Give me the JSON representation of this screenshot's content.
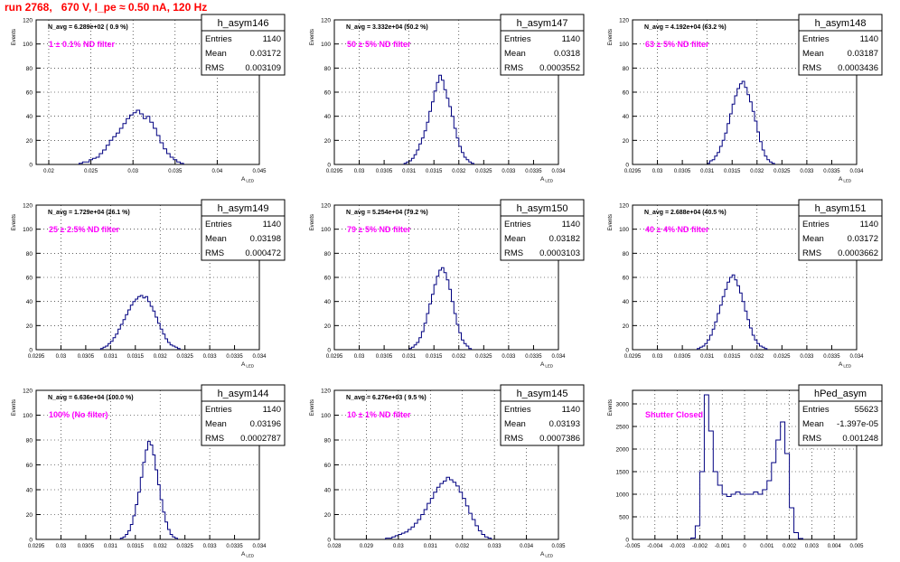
{
  "header": {
    "run_title": "run 2768,   670 V, I_pe ≈ 0.50 nA, 120 Hz"
  },
  "colors": {
    "histogram_line": "#000080",
    "title_text": "#ff0000",
    "filter_text": "#ff00ff",
    "grid": "#000000"
  },
  "chart_data": [
    {
      "type": "histogram",
      "title": "h_asym146",
      "navg": "N_avg = 6.289e+02 ( 0.9 %)",
      "filter": "1 ±  0.1% ND filter",
      "stats": {
        "Entries": "1140",
        "Mean": "0.03172",
        "RMS": "0.003109"
      },
      "xlabel": "A_LED",
      "ylabel": "Events",
      "xlim": [
        0.0185,
        0.045
      ],
      "ylim": [
        0,
        120
      ],
      "xticks": [
        "0.02",
        "0.025",
        "0.03",
        "0.035",
        "0.04",
        "0.045"
      ],
      "xtick_values": [
        0.02,
        0.025,
        0.03,
        0.035,
        0.04,
        0.045
      ],
      "yticks": [
        0,
        20,
        40,
        60,
        80,
        100,
        120
      ],
      "xgrid": [
        0.02,
        0.025,
        0.03,
        0.035,
        0.04
      ],
      "bins_start": 0.0236,
      "bin_width": 0.0004,
      "counts": [
        1,
        2,
        2,
        4,
        5,
        6,
        9,
        12,
        16,
        20,
        23,
        26,
        30,
        34,
        38,
        41,
        43,
        45,
        42,
        38,
        40,
        35,
        30,
        24,
        18,
        13,
        9,
        6,
        4,
        2,
        1
      ]
    },
    {
      "type": "histogram",
      "title": "h_asym147",
      "navg": "N_avg = 3.332e+04 (50.2 %)",
      "filter": "50 ±  5% ND filter",
      "stats": {
        "Entries": "1140",
        "Mean": "0.0318",
        "RMS": "0.0003552"
      },
      "xlabel": "A_LED",
      "ylabel": "Events",
      "xlim": [
        0.0295,
        0.034
      ],
      "ylim": [
        0,
        120
      ],
      "xticks": [
        "0.0295",
        "0.03",
        "0.0305",
        "0.031",
        "0.0315",
        "0.032",
        "0.0325",
        "0.033",
        "0.0335",
        "0.034"
      ],
      "xtick_values": [
        0.0295,
        0.03,
        0.0305,
        0.031,
        0.0315,
        0.032,
        0.0325,
        0.033,
        0.0335,
        0.034
      ],
      "yticks": [
        0,
        20,
        40,
        60,
        80,
        100,
        120
      ],
      "xgrid": [
        0.03,
        0.031,
        0.032,
        0.033
      ],
      "bins_start": 0.0309,
      "bin_width": 5e-05,
      "counts": [
        1,
        2,
        3,
        5,
        8,
        12,
        17,
        22,
        28,
        35,
        44,
        52,
        61,
        68,
        74,
        70,
        62,
        55,
        48,
        40,
        30,
        22,
        15,
        10,
        6,
        4,
        2,
        1
      ]
    },
    {
      "type": "histogram",
      "title": "h_asym148",
      "navg": "N_avg = 4.192e+04 (63.2 %)",
      "filter": "63 ±  5% ND filter",
      "stats": {
        "Entries": "1140",
        "Mean": "0.03187",
        "RMS": "0.0003436"
      },
      "xlabel": "A_LED",
      "ylabel": "Events",
      "xlim": [
        0.0295,
        0.034
      ],
      "ylim": [
        0,
        120
      ],
      "xticks": [
        "0.0295",
        "0.03",
        "0.0305",
        "0.031",
        "0.0315",
        "0.032",
        "0.0325",
        "0.033",
        "0.0335",
        "0.034"
      ],
      "xtick_values": [
        0.0295,
        0.03,
        0.0305,
        0.031,
        0.0315,
        0.032,
        0.0325,
        0.033,
        0.0335,
        0.034
      ],
      "yticks": [
        0,
        20,
        40,
        60,
        80,
        100,
        120
      ],
      "xgrid": [
        0.03,
        0.031,
        0.032,
        0.033
      ],
      "bins_start": 0.031,
      "bin_width": 5e-05,
      "counts": [
        1,
        3,
        4,
        7,
        10,
        15,
        20,
        26,
        34,
        42,
        50,
        57,
        63,
        67,
        69,
        64,
        58,
        52,
        44,
        36,
        27,
        19,
        12,
        7,
        4,
        2,
        1
      ]
    },
    {
      "type": "histogram",
      "title": "h_asym149",
      "navg": "N_avg = 1.729e+04 (26.1 %)",
      "filter": "25 ±  2.5% ND filter",
      "stats": {
        "Entries": "1140",
        "Mean": "0.03198",
        "RMS": "0.000472"
      },
      "xlabel": "A_LED",
      "ylabel": "Events",
      "xlim": [
        0.0295,
        0.034
      ],
      "ylim": [
        0,
        120
      ],
      "xticks": [
        "0.0295",
        "0.03",
        "0.0305",
        "0.031",
        "0.0315",
        "0.032",
        "0.0325",
        "0.033",
        "0.0335",
        "0.034"
      ],
      "xtick_values": [
        0.0295,
        0.03,
        0.0305,
        0.031,
        0.0315,
        0.032,
        0.0325,
        0.033,
        0.0335,
        0.034
      ],
      "yticks": [
        0,
        20,
        40,
        60,
        80,
        100,
        120
      ],
      "xgrid": [
        0.03,
        0.031,
        0.032,
        0.033
      ],
      "bins_start": 0.0308,
      "bin_width": 5e-05,
      "counts": [
        1,
        2,
        3,
        5,
        7,
        10,
        13,
        17,
        21,
        25,
        29,
        33,
        37,
        40,
        42,
        44,
        45,
        43,
        44,
        40,
        36,
        32,
        27,
        22,
        17,
        13,
        9,
        6,
        4,
        3,
        2,
        1
      ]
    },
    {
      "type": "histogram",
      "title": "h_asym150",
      "navg": "N_avg = 5.254e+04 (79.2 %)",
      "filter": "79 ±  5% ND filter",
      "stats": {
        "Entries": "1140",
        "Mean": "0.03182",
        "RMS": "0.0003103"
      },
      "xlabel": "A_LED",
      "ylabel": "Events",
      "xlim": [
        0.0295,
        0.034
      ],
      "ylim": [
        0,
        120
      ],
      "xticks": [
        "0.0295",
        "0.03",
        "0.0305",
        "0.031",
        "0.0315",
        "0.032",
        "0.0325",
        "0.033",
        "0.0335",
        "0.034"
      ],
      "xtick_values": [
        0.0295,
        0.03,
        0.0305,
        0.031,
        0.0315,
        0.032,
        0.0325,
        0.033,
        0.0335,
        0.034
      ],
      "yticks": [
        0,
        20,
        40,
        60,
        80,
        100,
        120
      ],
      "xgrid": [
        0.03,
        0.031,
        0.032,
        0.033
      ],
      "bins_start": 0.031,
      "bin_width": 5e-05,
      "counts": [
        1,
        2,
        4,
        6,
        10,
        15,
        22,
        30,
        38,
        46,
        54,
        61,
        66,
        68,
        64,
        58,
        50,
        40,
        30,
        21,
        14,
        8,
        5,
        3,
        1
      ]
    },
    {
      "type": "histogram",
      "title": "h_asym151",
      "navg": "N_avg = 2.688e+04 (40.5 %)",
      "filter": "40 ±  4% ND filter",
      "stats": {
        "Entries": "1140",
        "Mean": "0.03172",
        "RMS": "0.0003662"
      },
      "xlabel": "A_LED",
      "ylabel": "Events",
      "xlim": [
        0.0295,
        0.034
      ],
      "ylim": [
        0,
        120
      ],
      "xticks": [
        "0.0295",
        "0.03",
        "0.0305",
        "0.031",
        "0.0315",
        "0.032",
        "0.0325",
        "0.033",
        "0.0335",
        "0.034"
      ],
      "xtick_values": [
        0.0295,
        0.03,
        0.0305,
        0.031,
        0.0315,
        0.032,
        0.0325,
        0.033,
        0.0335,
        0.034
      ],
      "yticks": [
        0,
        20,
        40,
        60,
        80,
        100,
        120
      ],
      "xgrid": [
        0.03,
        0.031,
        0.032,
        0.033
      ],
      "bins_start": 0.0308,
      "bin_width": 5e-05,
      "counts": [
        1,
        2,
        3,
        5,
        8,
        12,
        17,
        23,
        30,
        37,
        44,
        50,
        56,
        60,
        62,
        58,
        53,
        47,
        40,
        32,
        25,
        18,
        12,
        8,
        5,
        3,
        2,
        1
      ]
    },
    {
      "type": "histogram",
      "title": "h_asym144",
      "navg": "N_avg = 6.636e+04 (100.0 %)",
      "filter": "100% (No filter)",
      "stats": {
        "Entries": "1140",
        "Mean": "0.03196",
        "RMS": "0.0002787"
      },
      "xlabel": "A_LED",
      "ylabel": "Events",
      "xlim": [
        0.0295,
        0.034
      ],
      "ylim": [
        0,
        120
      ],
      "xticks": [
        "0.0295",
        "0.03",
        "0.0305",
        "0.031",
        "0.0315",
        "0.032",
        "0.0325",
        "0.033",
        "0.0335",
        "0.034"
      ],
      "xtick_values": [
        0.0295,
        0.03,
        0.0305,
        0.031,
        0.0315,
        0.032,
        0.0325,
        0.033,
        0.0335,
        0.034
      ],
      "yticks": [
        0,
        20,
        40,
        60,
        80,
        100,
        120
      ],
      "xgrid": [
        0.03,
        0.031,
        0.032,
        0.033
      ],
      "bins_start": 0.0312,
      "bin_width": 5e-05,
      "counts": [
        1,
        2,
        4,
        7,
        12,
        19,
        28,
        38,
        50,
        62,
        72,
        79,
        76,
        68,
        56,
        44,
        32,
        22,
        14,
        8,
        4,
        2,
        1
      ]
    },
    {
      "type": "histogram",
      "title": "h_asym145",
      "navg": "N_avg = 6.276e+03 ( 9.5 %)",
      "filter": "10 ±  1% ND filter",
      "stats": {
        "Entries": "1140",
        "Mean": "0.03193",
        "RMS": "0.0007386"
      },
      "xlabel": "A_LED",
      "ylabel": "Events",
      "xlim": [
        0.028,
        0.035
      ],
      "ylim": [
        0,
        120
      ],
      "xticks": [
        "0.028",
        "0.029",
        "0.03",
        "0.031",
        "0.032",
        "0.033",
        "0.034",
        "0.035"
      ],
      "xtick_values": [
        0.028,
        0.029,
        0.03,
        0.031,
        0.032,
        0.033,
        0.034,
        0.035
      ],
      "yticks": [
        0,
        20,
        40,
        60,
        80,
        100,
        120
      ],
      "xgrid": [
        0.029,
        0.03,
        0.031,
        0.032,
        0.033,
        0.034
      ],
      "bins_start": 0.0296,
      "bin_width": 0.0001,
      "counts": [
        1,
        1,
        2,
        3,
        4,
        5,
        6,
        8,
        10,
        13,
        16,
        20,
        24,
        29,
        33,
        38,
        42,
        45,
        47,
        50,
        48,
        46,
        43,
        38,
        33,
        27,
        21,
        16,
        11,
        7,
        4,
        2,
        1
      ]
    },
    {
      "type": "histogram",
      "title": "hPed_asym",
      "navg": "",
      "filter": "Shutter Closed",
      "stats": {
        "Entries": "55623",
        "Mean": "-1.397e-05",
        "RMS": "0.001248"
      },
      "xlabel": "",
      "ylabel": "Events",
      "xlim": [
        -0.005,
        0.005
      ],
      "ylim": [
        0,
        3300
      ],
      "xticks": [
        "-0.005",
        "-0.004",
        "-0.003",
        "-0.002",
        "-0.001",
        "0",
        "0.001",
        "0.002",
        "0.003",
        "0.004",
        "0.005"
      ],
      "xtick_values": [
        -0.005,
        -0.004,
        -0.003,
        -0.002,
        -0.001,
        0,
        0.001,
        0.002,
        0.003,
        0.004,
        0.005
      ],
      "yticks": [
        0,
        500,
        1000,
        1500,
        2000,
        2500,
        3000
      ],
      "xgrid": [
        -0.004,
        -0.003,
        -0.002,
        -0.001,
        0,
        0.001,
        0.002,
        0.003,
        0.004
      ],
      "bins_start": -0.0024,
      "bin_width": 0.0002,
      "counts": [
        30,
        300,
        1500,
        3200,
        2400,
        1500,
        1200,
        1000,
        950,
        1000,
        1050,
        1000,
        1000,
        1000,
        1050,
        1000,
        1100,
        1300,
        1700,
        2200,
        2600,
        1900,
        700,
        150,
        20
      ]
    }
  ]
}
